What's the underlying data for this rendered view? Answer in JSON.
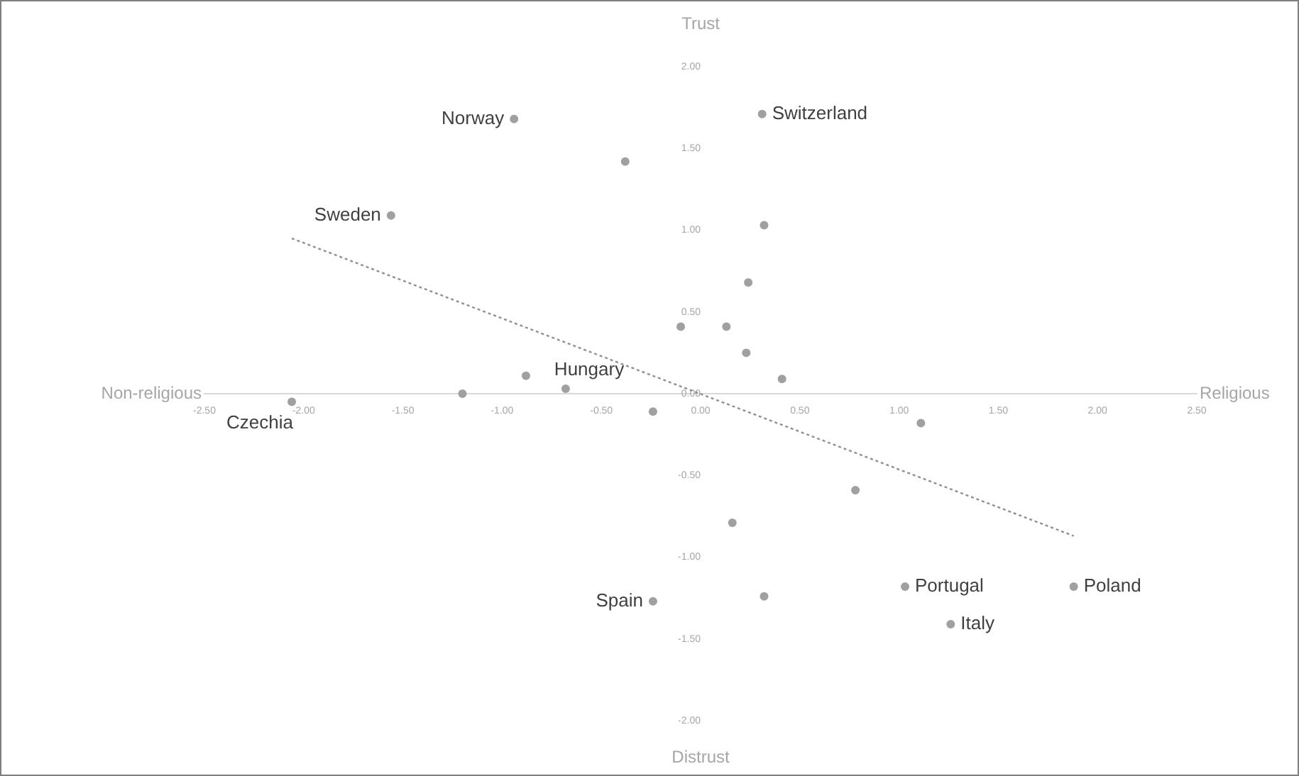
{
  "chart_data": {
    "type": "scatter",
    "xlim": [
      -2.5,
      2.5
    ],
    "ylim": [
      -2,
      2
    ],
    "xticks": [
      {
        "value": -2.5,
        "label": "-2.50"
      },
      {
        "value": -2,
        "label": "-2.00"
      },
      {
        "value": -1.5,
        "label": "-1.50"
      },
      {
        "value": -1,
        "label": "-1.00"
      },
      {
        "value": -0.5,
        "label": "-0.50"
      },
      {
        "value": 0,
        "label": "0.00"
      },
      {
        "value": 0.5,
        "label": "0.50"
      },
      {
        "value": 1,
        "label": "1.00"
      },
      {
        "value": 1.5,
        "label": "1.50"
      },
      {
        "value": 2,
        "label": "2.00"
      },
      {
        "value": 2.5,
        "label": "2.50"
      }
    ],
    "yticks": [
      {
        "value": -2,
        "label": "-2.00"
      },
      {
        "value": -1.5,
        "label": "-1.50"
      },
      {
        "value": -1,
        "label": "-1.00"
      },
      {
        "value": -0.5,
        "label": "-0.50"
      },
      {
        "value": 0,
        "label": "0.00"
      },
      {
        "value": 0.5,
        "label": "0.50"
      },
      {
        "value": 1,
        "label": "1.00"
      },
      {
        "value": 1.5,
        "label": "1.50"
      },
      {
        "value": 2,
        "label": "2.00"
      }
    ],
    "grid": false,
    "legend": false,
    "marker": "circle",
    "series": [
      {
        "type": "scatter",
        "color": "#a0a0a0",
        "x": [
          -0.94,
          -0.38,
          0.31,
          -1.56,
          0.32,
          0.24,
          -0.1,
          0.13,
          0.23,
          0.41,
          -0.88,
          -0.68,
          -1.2,
          -2.06,
          -0.24,
          1.11,
          0.78,
          0.16,
          0.32,
          -0.24,
          1.03,
          1.26,
          1.88
        ],
        "values": [
          1.68,
          1.42,
          1.71,
          1.09,
          1.03,
          0.68,
          0.41,
          0.41,
          0.25,
          0.09,
          0.11,
          0.03,
          0.0,
          -0.05,
          -0.11,
          -0.18,
          -0.59,
          -0.79,
          -1.24,
          -1.27,
          -1.18,
          -1.41,
          -1.18
        ]
      },
      {
        "type": "line",
        "color": "#909090",
        "marker": "none",
        "line_style": "dotted",
        "x": [
          -2.06,
          1.88
        ],
        "values": [
          0.95,
          -0.87
        ]
      }
    ],
    "annotations": [
      "Trust",
      "Distrust",
      "Non-religious",
      "Religious",
      {
        "text": "Norway",
        "x": -0.94,
        "y": 1.68
      },
      {
        "text": "Switzerland",
        "x": 0.31,
        "y": 1.71
      },
      {
        "text": "Sweden",
        "x": -1.56,
        "y": 1.09
      },
      {
        "text": "Hungary",
        "x": -0.68,
        "y": 0.03
      },
      {
        "text": "Czechia",
        "x": -2.06,
        "y": -0.05
      },
      {
        "text": "Spain",
        "x": -0.24,
        "y": -1.27
      },
      {
        "text": "Portugal",
        "x": 1.03,
        "y": -1.18
      },
      {
        "text": "Italy",
        "x": 1.26,
        "y": -1.41
      },
      {
        "text": "Poland",
        "x": 1.88,
        "y": -1.18
      }
    ]
  }
}
